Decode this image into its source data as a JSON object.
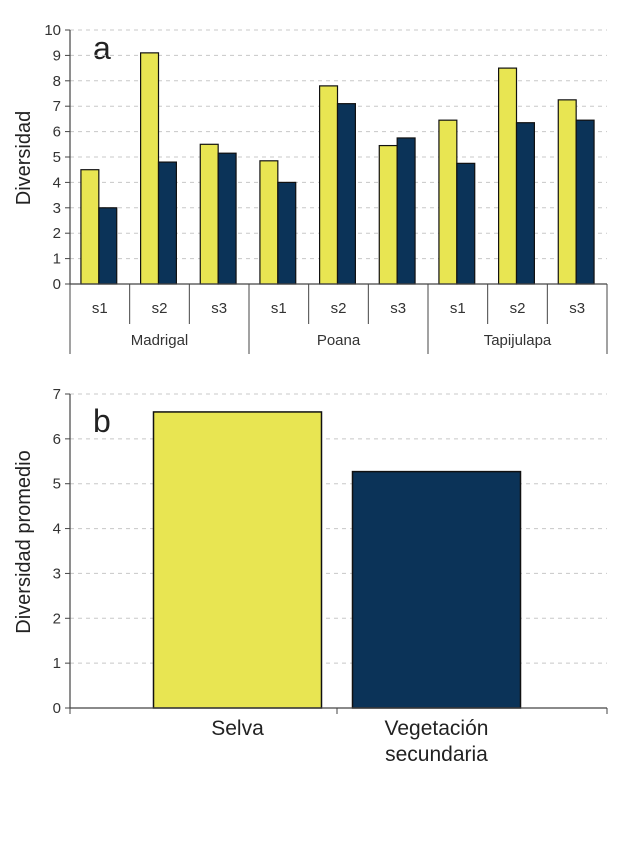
{
  "chart_data": [
    {
      "type": "bar",
      "panel_label": "a",
      "ylabel": "Diversidad",
      "ylim": [
        0,
        10
      ],
      "yticks": [
        0,
        1,
        2,
        3,
        4,
        5,
        6,
        7,
        8,
        9,
        10
      ],
      "grid": true,
      "groups": [
        {
          "name": "Madrigal",
          "categories": [
            "s1",
            "s2",
            "s3"
          ]
        },
        {
          "name": "Poana",
          "categories": [
            "s1",
            "s2",
            "s3"
          ]
        },
        {
          "name": "Tapijulapa",
          "categories": [
            "s1",
            "s2",
            "s3"
          ]
        }
      ],
      "series": [
        {
          "color": "#E8E552",
          "values": [
            4.5,
            9.1,
            5.5,
            4.85,
            7.8,
            5.45,
            6.45,
            8.5,
            7.25
          ]
        },
        {
          "color": "#0B3358",
          "values": [
            3.0,
            4.8,
            5.15,
            4.0,
            7.1,
            5.75,
            4.75,
            6.35,
            6.45
          ]
        }
      ]
    },
    {
      "type": "bar",
      "panel_label": "b",
      "ylabel": "Diversidad promedio",
      "ylim": [
        0,
        7
      ],
      "yticks": [
        0,
        1,
        2,
        3,
        4,
        5,
        6,
        7
      ],
      "grid": true,
      "categories": [
        "Selva",
        "Vegetación secundaria"
      ],
      "category_lines": [
        [
          "Selva"
        ],
        [
          "Vegetación",
          "secundaria"
        ]
      ],
      "values": [
        6.6,
        5.27
      ],
      "colors": [
        "#E8E552",
        "#0B3358"
      ]
    }
  ]
}
